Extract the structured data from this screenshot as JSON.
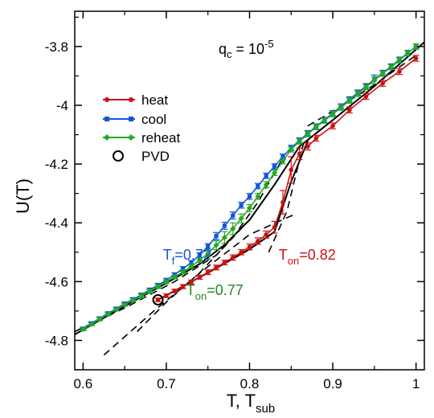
{
  "chart_data": {
    "type": "line",
    "xlabel": "T, T",
    "xlabel_sub": "sub",
    "ylabel": "U(T)",
    "xlim": [
      0.59,
      1.01
    ],
    "ylim": [
      -4.9,
      -3.68
    ],
    "xticks": [
      0.6,
      0.7,
      0.8,
      0.9,
      1.0
    ],
    "xtick_labels": [
      "0.6",
      "0.7",
      "0.8",
      "0.9",
      "1"
    ],
    "yticks": [
      -3.8,
      -4.0,
      -4.2,
      -4.4,
      -4.6,
      -4.8
    ],
    "ytick_labels": [
      "-3.8",
      "-4",
      "-4.2",
      "-4.4",
      "-4.6",
      "-4.8"
    ],
    "grid": false,
    "legend_position": "upper-left",
    "colors": {
      "heat": "#cc1111",
      "cool": "#1155dd",
      "reheat": "#22aa22",
      "fit": "#000000"
    },
    "title_annotation": {
      "base": "q",
      "sub": "c",
      "mid": " = 10",
      "sup": "-5"
    },
    "annotations": [
      {
        "base": "T",
        "sub": "f",
        "rest": "=0.72",
        "color": "#1155dd",
        "x": 0.696,
        "y": -4.525
      },
      {
        "base": "T",
        "sub": "on",
        "rest": "=0.82",
        "color": "#cc1111",
        "x": 0.835,
        "y": -4.525
      },
      {
        "base": "T",
        "sub": "on",
        "rest": "=0.77",
        "color": "#228822",
        "x": 0.724,
        "y": -4.645
      }
    ],
    "series": [
      {
        "name": "heat",
        "marker": "circle",
        "color": "#cc1111",
        "x": [
          0.69,
          0.7,
          0.71,
          0.72,
          0.73,
          0.74,
          0.75,
          0.76,
          0.77,
          0.78,
          0.79,
          0.8,
          0.81,
          0.82,
          0.83,
          0.84,
          0.85,
          0.86,
          0.87,
          0.88,
          0.9,
          0.92,
          0.94,
          0.96,
          0.98,
          1.0
        ],
        "y": [
          -4.662,
          -4.648,
          -4.632,
          -4.617,
          -4.602,
          -4.585,
          -4.568,
          -4.552,
          -4.535,
          -4.518,
          -4.5,
          -4.482,
          -4.462,
          -4.44,
          -4.415,
          -4.33,
          -4.22,
          -4.165,
          -4.14,
          -4.112,
          -4.07,
          -4.016,
          -3.97,
          -3.925,
          -3.885,
          -3.84
        ],
        "err": [
          0.006,
          0.006,
          0.006,
          0.007,
          0.007,
          0.007,
          0.008,
          0.008,
          0.008,
          0.009,
          0.009,
          0.01,
          0.011,
          0.012,
          0.02,
          0.04,
          0.045,
          0.02,
          0.012,
          0.01,
          0.01,
          0.01,
          0.01,
          0.01,
          0.01,
          0.01
        ]
      },
      {
        "name": "cool",
        "marker": "square",
        "color": "#1155dd",
        "x": [
          0.6,
          0.61,
          0.62,
          0.63,
          0.64,
          0.65,
          0.66,
          0.67,
          0.68,
          0.69,
          0.7,
          0.71,
          0.72,
          0.73,
          0.74,
          0.75,
          0.76,
          0.77,
          0.78,
          0.79,
          0.8,
          0.81,
          0.82,
          0.83,
          0.84,
          0.85,
          0.86,
          0.87,
          0.88,
          0.89,
          0.9,
          0.91,
          0.92,
          0.93,
          0.94,
          0.95,
          0.96,
          0.97,
          0.98,
          0.99,
          1.0
        ],
        "y": [
          -4.76,
          -4.742,
          -4.725,
          -4.708,
          -4.692,
          -4.675,
          -4.66,
          -4.645,
          -4.628,
          -4.612,
          -4.595,
          -4.576,
          -4.556,
          -4.535,
          -4.51,
          -4.48,
          -4.445,
          -4.41,
          -4.375,
          -4.34,
          -4.31,
          -4.275,
          -4.24,
          -4.208,
          -4.175,
          -4.145,
          -4.12,
          -4.095,
          -4.072,
          -4.05,
          -4.027,
          -4.004,
          -3.98,
          -3.957,
          -3.935,
          -3.912,
          -3.89,
          -3.868,
          -3.845,
          -3.822,
          -3.8
        ],
        "err": [
          0.005,
          0.005,
          0.005,
          0.005,
          0.005,
          0.005,
          0.005,
          0.006,
          0.006,
          0.006,
          0.006,
          0.006,
          0.007,
          0.007,
          0.008,
          0.009,
          0.012,
          0.012,
          0.012,
          0.01,
          0.01,
          0.009,
          0.009,
          0.009,
          0.009,
          0.009,
          0.009,
          0.009,
          0.009,
          0.009,
          0.009,
          0.009,
          0.009,
          0.009,
          0.009,
          0.015,
          0.009,
          0.009,
          0.009,
          0.009,
          0.009
        ]
      },
      {
        "name": "reheat",
        "marker": "diamond",
        "color": "#22aa22",
        "x": [
          0.6,
          0.61,
          0.62,
          0.63,
          0.64,
          0.65,
          0.66,
          0.67,
          0.68,
          0.69,
          0.7,
          0.71,
          0.72,
          0.73,
          0.74,
          0.75,
          0.76,
          0.77,
          0.78,
          0.79,
          0.8,
          0.81,
          0.82,
          0.83,
          0.84,
          0.85,
          0.86,
          0.87,
          0.88,
          0.89,
          0.9,
          0.91,
          0.92,
          0.93,
          0.94,
          0.95,
          0.96,
          0.97,
          0.98,
          0.99,
          1.0
        ],
        "y": [
          -4.762,
          -4.745,
          -4.728,
          -4.711,
          -4.695,
          -4.679,
          -4.664,
          -4.649,
          -4.633,
          -4.617,
          -4.601,
          -4.584,
          -4.567,
          -4.548,
          -4.527,
          -4.505,
          -4.476,
          -4.45,
          -4.42,
          -4.385,
          -4.35,
          -4.31,
          -4.27,
          -4.23,
          -4.19,
          -4.15,
          -4.123,
          -4.098,
          -4.074,
          -4.052,
          -4.03,
          -4.008,
          -3.984,
          -3.961,
          -3.938,
          -3.915,
          -3.892,
          -3.87,
          -3.847,
          -3.823,
          -3.8
        ],
        "err": [
          0.005,
          0.005,
          0.005,
          0.005,
          0.005,
          0.005,
          0.005,
          0.006,
          0.006,
          0.006,
          0.006,
          0.006,
          0.007,
          0.007,
          0.008,
          0.009,
          0.015,
          0.02,
          0.02,
          0.015,
          0.012,
          0.01,
          0.01,
          0.009,
          0.009,
          0.009,
          0.009,
          0.009,
          0.009,
          0.009,
          0.009,
          0.009,
          0.009,
          0.009,
          0.009,
          0.012,
          0.009,
          0.009,
          0.009,
          0.009,
          0.009
        ]
      },
      {
        "name": "PVD",
        "marker": "open-circle",
        "color": "#000000",
        "x": [
          0.69
        ],
        "y": [
          -4.662
        ],
        "err": []
      }
    ],
    "fit_lines": [
      {
        "style": "solid",
        "x": [
          0.59,
          0.65,
          0.7,
          0.74,
          0.77,
          0.8,
          0.83,
          0.86,
          0.9,
          0.95,
          1.01
        ],
        "y": [
          -4.78,
          -4.683,
          -4.605,
          -4.54,
          -4.475,
          -4.39,
          -4.27,
          -4.14,
          -4.05,
          -3.935,
          -3.785
        ]
      },
      {
        "style": "solid",
        "x": [
          0.69,
          0.75,
          0.8,
          0.83,
          0.85,
          0.87
        ],
        "y": [
          -4.662,
          -4.57,
          -4.49,
          -4.43,
          -4.26,
          -4.12
        ]
      },
      {
        "style": "dashed",
        "x": [
          0.625,
          0.685,
          0.745,
          0.8,
          0.855
        ],
        "y": [
          -4.85,
          -4.7,
          -4.56,
          -4.44,
          -4.37
        ]
      },
      {
        "style": "dashed",
        "x": [
          0.59,
          0.65,
          0.71,
          0.76,
          0.79
        ],
        "y": [
          -4.77,
          -4.69,
          -4.6,
          -4.51,
          -4.42
        ]
      },
      {
        "style": "dashed",
        "x": [
          0.665,
          0.7,
          0.74,
          0.78,
          0.81,
          0.84
        ],
        "y": [
          -4.77,
          -4.67,
          -4.57,
          -4.45,
          -4.33,
          -4.18
        ]
      },
      {
        "style": "dashed",
        "x": [
          0.823,
          0.845,
          0.87,
          0.9,
          0.95,
          1.0
        ],
        "y": [
          -4.5,
          -4.36,
          -4.07,
          -4.02,
          -3.93,
          -3.83
        ]
      }
    ]
  }
}
